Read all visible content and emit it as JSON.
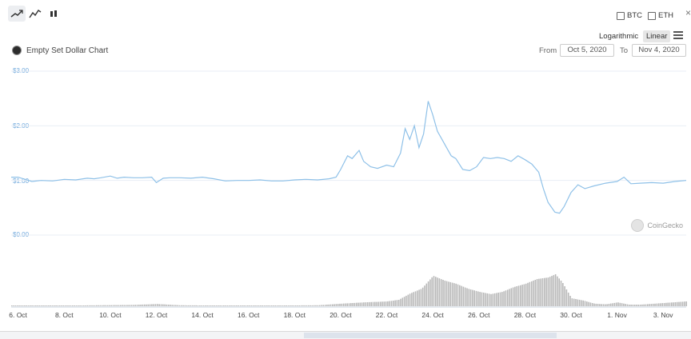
{
  "toolbar": {
    "chart_types": [
      "line-chart-icon",
      "area-chart-icon",
      "candlestick-icon"
    ],
    "compare": [
      {
        "label": "BTC",
        "checked": false
      },
      {
        "label": "ETH",
        "checked": false
      }
    ],
    "scale": {
      "logarithmic": "Logarithmic",
      "linear": "Linear",
      "selected": "Linear"
    },
    "menu_icon": "hamburger-icon",
    "close_icon": "close-icon"
  },
  "header": {
    "title": "Empty Set Dollar Chart",
    "from_label": "From",
    "from_date": "Oct 5, 2020",
    "to_label": "To",
    "to_date": "Nov 4, 2020"
  },
  "watermark": "CoinGecko",
  "colors": {
    "price_line": "#8fc1e8",
    "grid": "#e8eef5",
    "volume": "#b8b8b8",
    "axis_text": "#6fa8dc"
  },
  "chart_data": {
    "type": "line",
    "title": "Empty Set Dollar Chart",
    "ylim": [
      0,
      3
    ],
    "y_ticks": [
      "$3.00",
      "$2.00",
      "$1.00",
      "$0.00"
    ],
    "x_ticks": [
      "6. Oct",
      "8. Oct",
      "10. Oct",
      "12. Oct",
      "14. Oct",
      "16. Oct",
      "18. Oct",
      "20. Oct",
      "22. Oct",
      "24. Oct",
      "26. Oct",
      "28. Oct",
      "30. Oct",
      "1. Nov",
      "3. Nov"
    ],
    "x_range_days": [
      5.7,
      35.0
    ],
    "series": [
      {
        "values": [
          [
            5.7,
            1.06
          ],
          [
            6.0,
            1.06
          ],
          [
            6.3,
            1.02
          ],
          [
            6.6,
            0.98
          ],
          [
            7.0,
            1.0
          ],
          [
            7.5,
            0.99
          ],
          [
            8.0,
            1.02
          ],
          [
            8.5,
            1.01
          ],
          [
            9.0,
            1.04
          ],
          [
            9.3,
            1.03
          ],
          [
            9.6,
            1.05
          ],
          [
            10.0,
            1.08
          ],
          [
            10.3,
            1.04
          ],
          [
            10.6,
            1.06
          ],
          [
            11.0,
            1.05
          ],
          [
            11.4,
            1.05
          ],
          [
            11.8,
            1.06
          ],
          [
            12.0,
            0.96
          ],
          [
            12.3,
            1.04
          ],
          [
            12.6,
            1.05
          ],
          [
            13.0,
            1.05
          ],
          [
            13.5,
            1.04
          ],
          [
            14.0,
            1.06
          ],
          [
            14.5,
            1.03
          ],
          [
            15.0,
            0.99
          ],
          [
            15.5,
            1.0
          ],
          [
            16.0,
            1.0
          ],
          [
            16.5,
            1.01
          ],
          [
            17.0,
            0.99
          ],
          [
            17.5,
            0.99
          ],
          [
            18.0,
            1.01
          ],
          [
            18.5,
            1.02
          ],
          [
            19.0,
            1.01
          ],
          [
            19.5,
            1.03
          ],
          [
            19.8,
            1.06
          ],
          [
            20.0,
            1.2
          ],
          [
            20.3,
            1.45
          ],
          [
            20.5,
            1.4
          ],
          [
            20.8,
            1.55
          ],
          [
            21.0,
            1.35
          ],
          [
            21.3,
            1.25
          ],
          [
            21.6,
            1.22
          ],
          [
            22.0,
            1.28
          ],
          [
            22.3,
            1.25
          ],
          [
            22.6,
            1.5
          ],
          [
            22.8,
            1.95
          ],
          [
            23.0,
            1.75
          ],
          [
            23.2,
            2.0
          ],
          [
            23.4,
            1.6
          ],
          [
            23.6,
            1.85
          ],
          [
            23.8,
            2.45
          ],
          [
            24.0,
            2.2
          ],
          [
            24.2,
            1.9
          ],
          [
            24.4,
            1.75
          ],
          [
            24.6,
            1.6
          ],
          [
            24.8,
            1.45
          ],
          [
            25.0,
            1.4
          ],
          [
            25.3,
            1.2
          ],
          [
            25.6,
            1.18
          ],
          [
            25.9,
            1.25
          ],
          [
            26.2,
            1.42
          ],
          [
            26.5,
            1.4
          ],
          [
            26.8,
            1.42
          ],
          [
            27.1,
            1.4
          ],
          [
            27.4,
            1.35
          ],
          [
            27.7,
            1.45
          ],
          [
            28.0,
            1.38
          ],
          [
            28.3,
            1.3
          ],
          [
            28.6,
            1.15
          ],
          [
            28.8,
            0.85
          ],
          [
            29.0,
            0.6
          ],
          [
            29.3,
            0.42
          ],
          [
            29.5,
            0.4
          ],
          [
            29.7,
            0.52
          ],
          [
            30.0,
            0.78
          ],
          [
            30.3,
            0.92
          ],
          [
            30.6,
            0.85
          ],
          [
            31.0,
            0.9
          ],
          [
            31.5,
            0.95
          ],
          [
            32.0,
            0.98
          ],
          [
            32.3,
            1.06
          ],
          [
            32.6,
            0.94
          ],
          [
            33.0,
            0.95
          ],
          [
            33.5,
            0.96
          ],
          [
            34.0,
            0.95
          ],
          [
            34.5,
            0.98
          ],
          [
            35.0,
            1.0
          ]
        ]
      }
    ],
    "volume": [
      [
        5.7,
        0.02
      ],
      [
        8.0,
        0.02
      ],
      [
        11.0,
        0.04
      ],
      [
        12.0,
        0.07
      ],
      [
        13.0,
        0.03
      ],
      [
        15.0,
        0.02
      ],
      [
        17.0,
        0.02
      ],
      [
        19.0,
        0.03
      ],
      [
        20.0,
        0.08
      ],
      [
        21.0,
        0.12
      ],
      [
        22.0,
        0.15
      ],
      [
        22.5,
        0.2
      ],
      [
        23.0,
        0.4
      ],
      [
        23.5,
        0.55
      ],
      [
        24.0,
        0.95
      ],
      [
        24.5,
        0.8
      ],
      [
        25.0,
        0.7
      ],
      [
        25.5,
        0.55
      ],
      [
        26.0,
        0.45
      ],
      [
        26.5,
        0.38
      ],
      [
        27.0,
        0.45
      ],
      [
        27.5,
        0.6
      ],
      [
        28.0,
        0.7
      ],
      [
        28.5,
        0.85
      ],
      [
        29.0,
        0.9
      ],
      [
        29.3,
        1.0
      ],
      [
        29.6,
        0.75
      ],
      [
        30.0,
        0.25
      ],
      [
        30.5,
        0.18
      ],
      [
        31.0,
        0.08
      ],
      [
        31.5,
        0.06
      ],
      [
        32.0,
        0.12
      ],
      [
        32.5,
        0.05
      ],
      [
        33.0,
        0.05
      ],
      [
        34.0,
        0.1
      ],
      [
        35.0,
        0.15
      ]
    ]
  }
}
